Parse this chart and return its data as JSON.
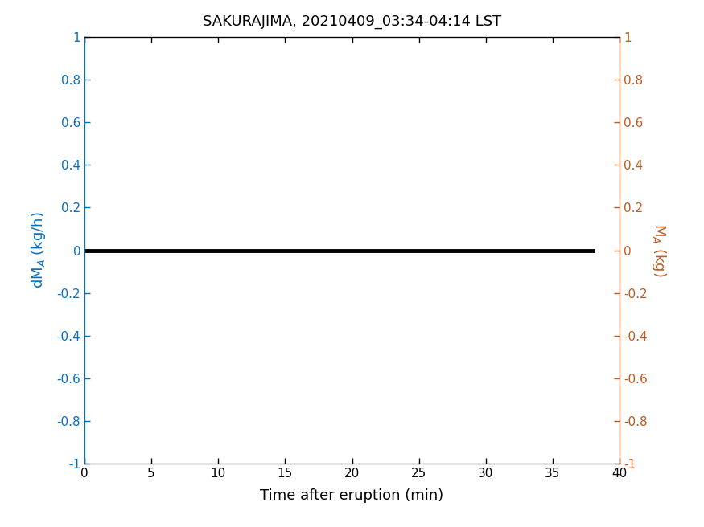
{
  "title": "SAKURAJIMA, 20210409_03:34-04:14 LST",
  "title_fontsize": 13,
  "xlabel": "Time after eruption (min)",
  "xlabel_fontsize": 13,
  "ylabel_left": "dM_A (kg/h)",
  "ylabel_right": "M_A (kg)",
  "ylabel_left_color": "#0570C0",
  "ylabel_right_color": "#BF5B20",
  "xlim": [
    0,
    40
  ],
  "ylim": [
    -1,
    1
  ],
  "xticks": [
    0,
    5,
    10,
    15,
    20,
    25,
    30,
    35,
    40
  ],
  "yticks": [
    -1,
    -0.8,
    -0.6,
    -0.4,
    -0.2,
    0,
    0.2,
    0.4,
    0.6,
    0.8,
    1
  ],
  "line_x": [
    0,
    38
  ],
  "line_y": [
    0,
    0
  ],
  "line_color": "#000000",
  "line_width": 3.5,
  "tick_color_left": "#0570C0",
  "tick_color_right": "#BF5B20",
  "bg_color": "#FFFFFF",
  "tick_label_fontsize": 11
}
